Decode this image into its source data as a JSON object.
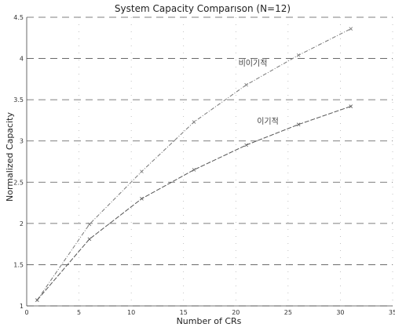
{
  "chart_data": {
    "type": "line",
    "title": "System  Capacity Comparıson (N=12)",
    "xlabel": "Number of CRs",
    "ylabel": "Normalized Capacity",
    "xlim": [
      0,
      35
    ],
    "ylim": [
      1,
      4.5
    ],
    "xticks": [
      "0",
      "5",
      "10",
      "15",
      "20",
      "25",
      "30",
      "35"
    ],
    "yticks": [
      "1",
      "1.5",
      "2",
      "2.5",
      "3",
      "3.5",
      "4",
      "4.5"
    ],
    "grid": true,
    "series": [
      {
        "name": "비이기적",
        "color": "#777777",
        "x": [
          1,
          6,
          11,
          16,
          21,
          26,
          31
        ],
        "y": [
          1.07,
          1.99,
          2.63,
          3.23,
          3.68,
          4.04,
          4.36
        ]
      },
      {
        "name": "이기적",
        "color": "#555555",
        "x": [
          1,
          6,
          11,
          16,
          21,
          26,
          31
        ],
        "y": [
          1.07,
          1.81,
          2.3,
          2.65,
          2.95,
          3.2,
          3.42
        ]
      }
    ]
  }
}
